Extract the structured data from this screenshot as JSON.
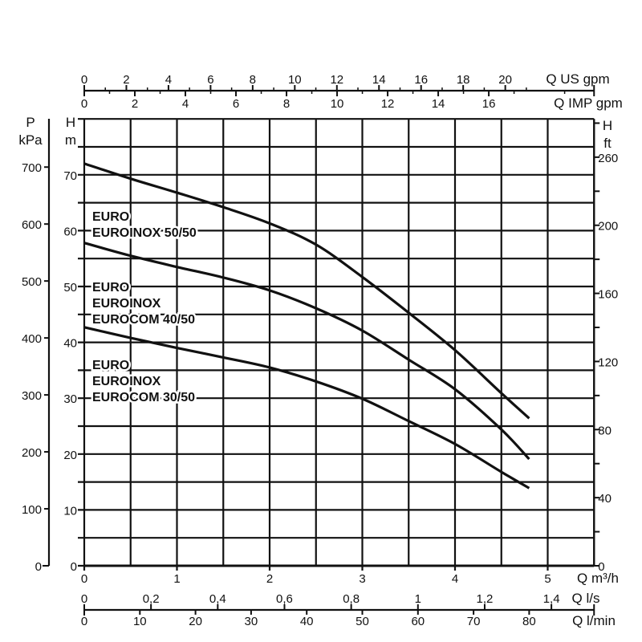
{
  "chart_data": {
    "type": "line",
    "title": "",
    "xlabel": "Q m³/h",
    "ylabel": "H m",
    "xlim": [
      0,
      5.5
    ],
    "ylim": [
      0,
      80
    ],
    "grid": true,
    "x_ticks": [
      "0",
      "1",
      "2",
      "3",
      "4",
      "5"
    ],
    "y_ticks": [
      "0",
      "10",
      "20",
      "30",
      "40",
      "50",
      "60",
      "70"
    ],
    "series": [
      {
        "name": "EURO / EUROINOX 50/50",
        "label_lines": [
          "EURO",
          "EUROINOX 50/50"
        ],
        "x": [
          0,
          0.5,
          1,
          1.5,
          2,
          2.5,
          3,
          3.5,
          4,
          4.5,
          4.8
        ],
        "y": [
          72,
          69.3,
          66.8,
          64.2,
          61.3,
          57.5,
          51.7,
          45.3,
          38.6,
          30.9,
          26.4
        ]
      },
      {
        "name": "EURO / EUROINOX / EUROCOM 40/50",
        "label_lines": [
          "EURO",
          "EUROINOX",
          "EUROCOM 40/50"
        ],
        "x": [
          0,
          0.5,
          1,
          1.5,
          2,
          2.5,
          3,
          3.5,
          4,
          4.5,
          4.8
        ],
        "y": [
          57.8,
          55.5,
          53.5,
          51.6,
          49.3,
          46.1,
          42.1,
          36.9,
          31.6,
          24.4,
          19.1
        ]
      },
      {
        "name": "EURO / EUROINOX / EUROCOM 30/50",
        "label_lines": [
          "EURO",
          "EUROINOX",
          "EUROCOM 30/50"
        ],
        "x": [
          0,
          0.5,
          1,
          1.5,
          2,
          2.5,
          3,
          3.5,
          4,
          4.5,
          4.8
        ],
        "y": [
          42.7,
          40.8,
          39.0,
          37.3,
          35.5,
          33.0,
          29.9,
          25.9,
          21.8,
          16.8,
          13.9
        ]
      }
    ],
    "axes": {
      "us_gpm": {
        "label": "Q US gpm",
        "ticks": [
          "0",
          "2",
          "4",
          "6",
          "8",
          "10",
          "12",
          "14",
          "16",
          "18",
          "20"
        ]
      },
      "imp_gpm": {
        "label": "Q IMP gpm",
        "ticks": [
          "0",
          "2",
          "4",
          "6",
          "8",
          "10",
          "12",
          "14",
          "16"
        ]
      },
      "kpa": {
        "label_top": "P",
        "label_unit": "kPa",
        "ticks": [
          "0",
          "100",
          "200",
          "300",
          "400",
          "500",
          "600",
          "700"
        ]
      },
      "h_m": {
        "label_top": "H",
        "label_unit": "m"
      },
      "ft": {
        "label_top": "H",
        "label_unit": "ft",
        "ticks": [
          "0",
          "40",
          "80",
          "120",
          "160",
          "200",
          "260"
        ]
      },
      "m3h": {
        "label": "Q m³/h"
      },
      "ls": {
        "label": "Q l/s",
        "ticks": [
          "0",
          "0,2",
          "0,4",
          "0,6",
          "0,8",
          "1",
          "1,2",
          "1,4"
        ]
      },
      "lmin": {
        "label": "Q l/min",
        "ticks": [
          "0",
          "10",
          "20",
          "30",
          "40",
          "50",
          "60",
          "70",
          "80"
        ]
      }
    }
  }
}
